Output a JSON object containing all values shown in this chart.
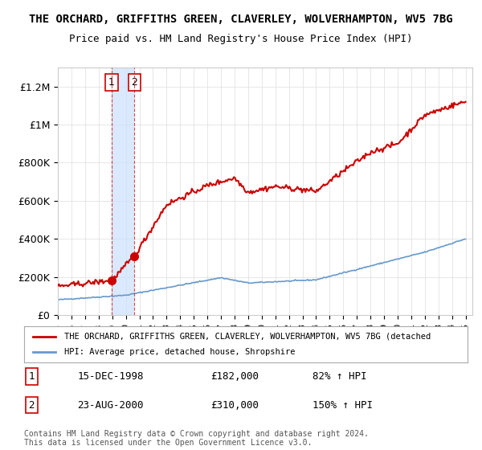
{
  "title": "THE ORCHARD, GRIFFITHS GREEN, CLAVERLEY, WOLVERHAMPTON, WV5 7BG",
  "subtitle": "Price paid vs. HM Land Registry's House Price Index (HPI)",
  "ylabel_ticks": [
    0,
    200000,
    400000,
    600000,
    800000,
    1000000,
    1200000
  ],
  "ylabel_labels": [
    "£0",
    "£200K",
    "£400K",
    "£600K",
    "£800K",
    "£1M",
    "£1.2M"
  ],
  "ylim": [
    0,
    1300000
  ],
  "xlim_start": 1995.0,
  "xlim_end": 2025.5,
  "point1_x": 1998.96,
  "point1_y": 182000,
  "point2_x": 2000.64,
  "point2_y": 310000,
  "shade_x1": 1998.96,
  "shade_x2": 2000.64,
  "red_color": "#cc0000",
  "blue_color": "#6699cc",
  "shade_color": "#cce0ff",
  "legend_line1": "THE ORCHARD, GRIFFITHS GREEN, CLAVERLEY, WOLVERHAMPTON, WV5 7BG (detached",
  "legend_line2": "HPI: Average price, detached house, Shropshire",
  "table_row1_num": "1",
  "table_row1_date": "15-DEC-1998",
  "table_row1_price": "£182,000",
  "table_row1_hpi": "82% ↑ HPI",
  "table_row2_num": "2",
  "table_row2_date": "23-AUG-2000",
  "table_row2_price": "£310,000",
  "table_row2_hpi": "150% ↑ HPI",
  "footer": "Contains HM Land Registry data © Crown copyright and database right 2024.\nThis data is licensed under the Open Government Licence v3.0.",
  "background_color": "#ffffff",
  "grid_color": "#dddddd",
  "hpi_knots_x": [
    1995,
    2000,
    2007,
    2009,
    2014,
    2022,
    2025
  ],
  "hpi_knots_y": [
    80000,
    104000,
    196000,
    168000,
    185000,
    330000,
    400000
  ],
  "red_knots_x": [
    1995,
    1998.96,
    2000.64,
    2003,
    2006,
    2008,
    2009,
    2011,
    2014,
    2016,
    2018,
    2020,
    2022,
    2024,
    2025
  ],
  "red_knots_y": [
    150000,
    182000,
    310000,
    580000,
    680000,
    720000,
    645000,
    675000,
    650000,
    755000,
    855000,
    900000,
    1050000,
    1100000,
    1120000
  ]
}
